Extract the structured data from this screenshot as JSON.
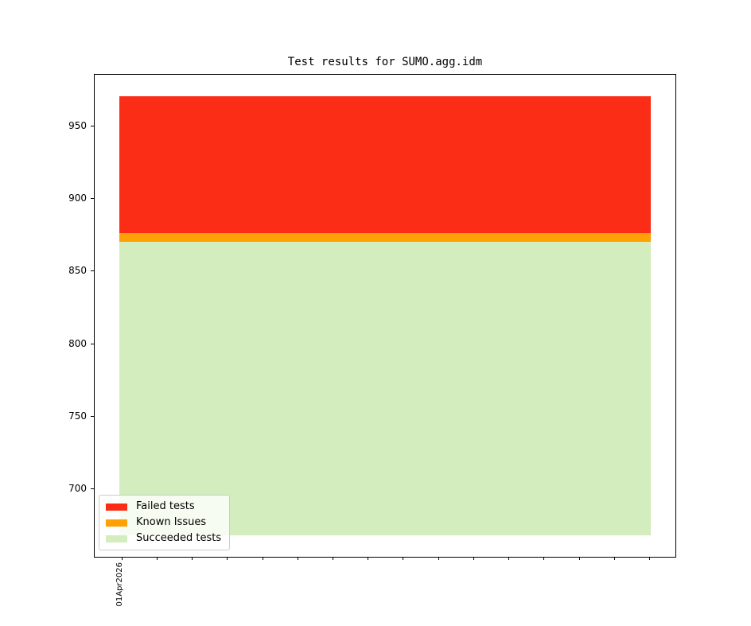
{
  "chart_data": {
    "type": "area",
    "title": "Test results for SUMO.agg.idm",
    "xlabel": "",
    "ylabel": "",
    "x_tick_labels": [
      "01Apr2026"
    ],
    "yticks": [
      950,
      900,
      850,
      800,
      750,
      700
    ],
    "ylim": [
      653,
      985
    ],
    "grid": false,
    "series": [
      {
        "name": "Failed tests",
        "color": "#fc2d17",
        "band_from": 876,
        "band_to": 970
      },
      {
        "name": "Known Issues",
        "color": "#ffa004",
        "band_from": 870,
        "band_to": 876
      },
      {
        "name": "Succeeded tests",
        "color": "#d3edbe",
        "band_from": 668,
        "band_to": 870
      }
    ],
    "derived_counts": {
      "failed": 94,
      "known_issues": 6,
      "succeeded": 870,
      "total": 970
    },
    "xticks": {
      "count": 16,
      "first_frac": 0.046,
      "step_frac": 0.0606
    },
    "legend": {
      "position": "lower left",
      "entries": [
        "Failed tests",
        "Known Issues",
        "Succeeded tests"
      ]
    },
    "colors": {
      "failed": "#fc2d17",
      "known_issues": "#ffa004",
      "succeeded": "#d3edbe",
      "axis": "#000000",
      "legend_border": "#cccccc"
    }
  }
}
